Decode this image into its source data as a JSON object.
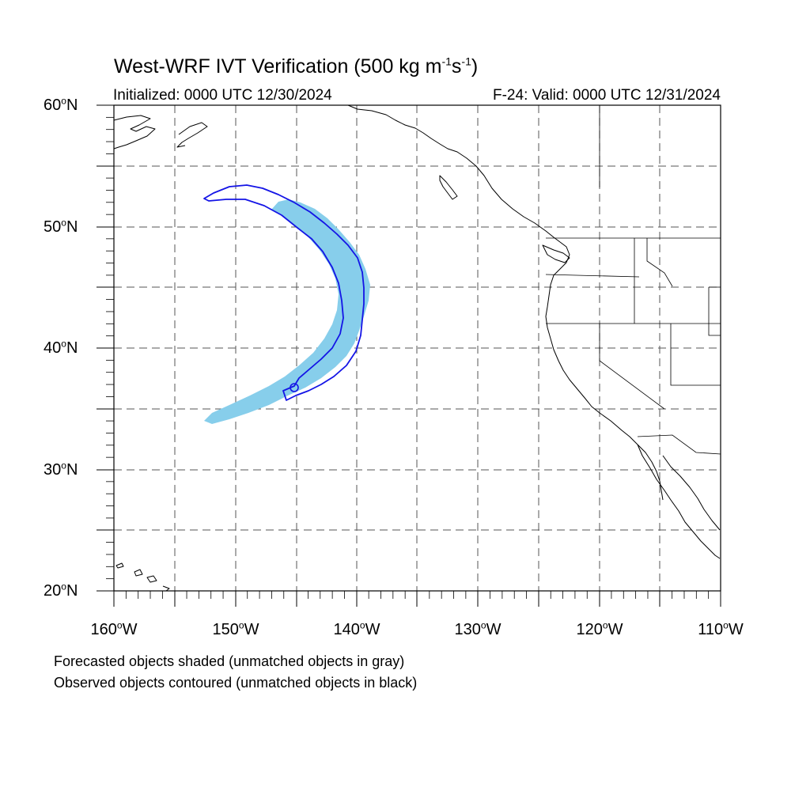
{
  "title": {
    "main": "West-WRF IVT Verification (500 kg m",
    "exp1": "-1",
    "mid": "s",
    "exp2": "-1",
    "close": ")"
  },
  "init_time": "Initialized: 0000 UTC 12/30/2024",
  "valid_time": "F-24: Valid: 0000 UTC 12/31/2024",
  "lat_labels": [
    {
      "value": "60",
      "hemi": "N"
    },
    {
      "value": "50",
      "hemi": "N"
    },
    {
      "value": "40",
      "hemi": "N"
    },
    {
      "value": "30",
      "hemi": "N"
    },
    {
      "value": "20",
      "hemi": "N"
    }
  ],
  "lon_labels": [
    {
      "value": "160",
      "hemi": "W"
    },
    {
      "value": "150",
      "hemi": "W"
    },
    {
      "value": "140",
      "hemi": "W"
    },
    {
      "value": "130",
      "hemi": "W"
    },
    {
      "value": "120",
      "hemi": "W"
    },
    {
      "value": "110",
      "hemi": "W"
    }
  ],
  "footnotes": {
    "forecast": "Forecasted objects shaded (unmatched objects in gray)",
    "observed": "Observed objects contoured (unmatched objects in black)"
  },
  "colors": {
    "forecast_fill": "#87ceeb",
    "observed_contour": "#1414e6",
    "coastline": "#000000",
    "grid": "#555555"
  },
  "map": {
    "lon_range": [
      -160,
      -110
    ],
    "lat_range": [
      20,
      60
    ]
  }
}
